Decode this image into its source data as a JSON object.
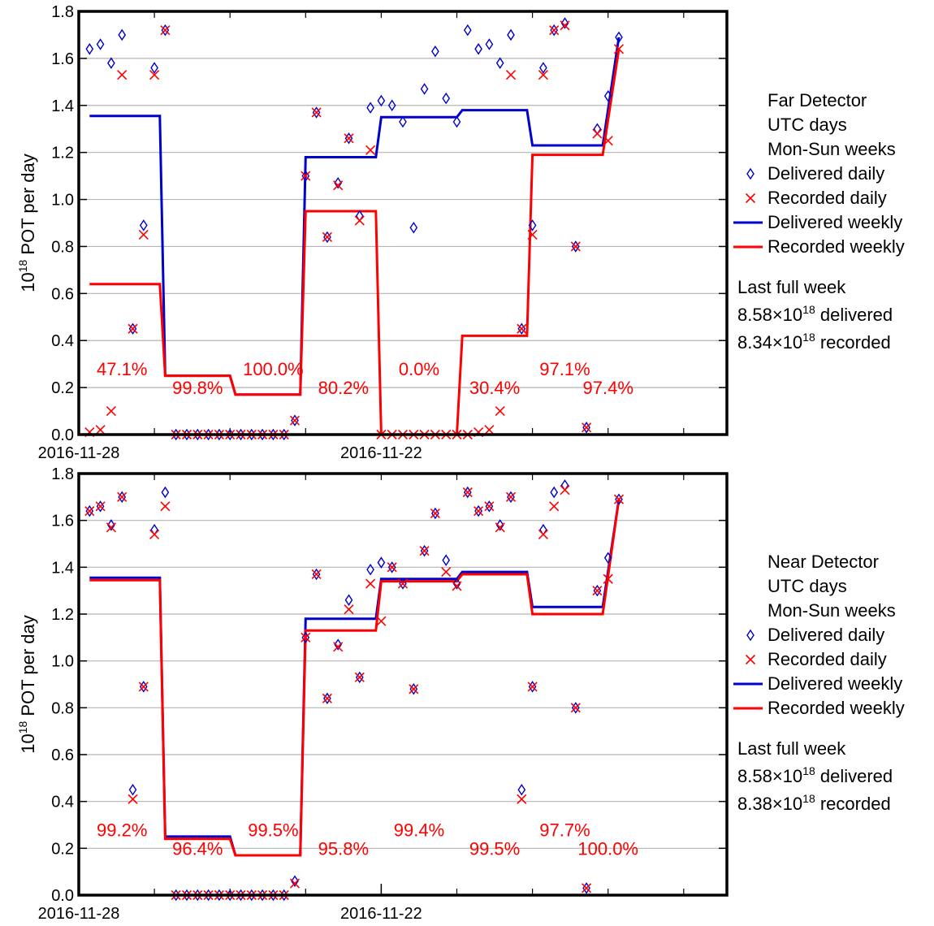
{
  "colors": {
    "delivered": "#0000cc",
    "recorded": "#ff0000",
    "grid": "#b4b4b4",
    "axis": "#000000"
  },
  "chart_data": [
    {
      "type": "scatter",
      "ylabel": "10",
      "ylabel_sup": "18",
      "ylabel_rest": " POT per day",
      "ylim": [
        0,
        1.8
      ],
      "xlim": [
        0,
        60
      ],
      "yticks": [
        "0.0",
        "0.2",
        "0.4",
        "0.6",
        "0.8",
        "1.0",
        "1.2",
        "1.4",
        "1.6",
        "1.8"
      ],
      "xtick_labels": [
        {
          "x": 0,
          "label": "2016-11-28"
        },
        {
          "x": 28,
          "label": "2016-11-22"
        }
      ],
      "legend": {
        "lines": [
          "Far Detector",
          "UTC days",
          "Mon-Sun weeks"
        ],
        "delivered_daily": "Delivered daily",
        "recorded_daily": "Recorded daily",
        "delivered_weekly": "Delivered weekly",
        "recorded_weekly": "Recorded weekly",
        "summary_title": "Last full week",
        "delivered_value": "8.58",
        "recorded_value": "8.34",
        "times": "×10",
        "exp": "18",
        "delivered_suffix": " delivered",
        "recorded_suffix": " recorded"
      },
      "delivered_daily": [
        [
          1,
          1.64
        ],
        [
          2,
          1.66
        ],
        [
          3,
          1.58
        ],
        [
          4,
          1.7
        ],
        [
          5,
          0.45
        ],
        [
          6,
          0.89
        ],
        [
          7,
          1.56
        ],
        [
          8,
          1.72
        ],
        [
          9,
          0
        ],
        [
          10,
          0
        ],
        [
          11,
          0
        ],
        [
          12,
          0
        ],
        [
          13,
          0
        ],
        [
          14,
          0
        ],
        [
          15,
          0
        ],
        [
          16,
          0
        ],
        [
          17,
          0
        ],
        [
          18,
          0
        ],
        [
          19,
          0
        ],
        [
          20,
          0.06
        ],
        [
          21,
          1.1
        ],
        [
          22,
          1.37
        ],
        [
          23,
          0.84
        ],
        [
          24,
          1.07
        ],
        [
          25,
          1.26
        ],
        [
          26,
          0.93
        ],
        [
          27,
          1.39
        ],
        [
          28,
          1.42
        ],
        [
          29,
          1.4
        ],
        [
          30,
          1.33
        ],
        [
          31,
          0.88
        ],
        [
          32,
          1.47
        ],
        [
          33,
          1.63
        ],
        [
          34,
          1.43
        ],
        [
          35,
          1.33
        ],
        [
          36,
          1.72
        ],
        [
          37,
          1.64
        ],
        [
          38,
          1.66
        ],
        [
          39,
          1.58
        ],
        [
          40,
          1.7
        ],
        [
          41,
          0.45
        ],
        [
          42,
          0.89
        ],
        [
          43,
          1.56
        ],
        [
          44,
          1.72
        ],
        [
          45,
          1.75
        ],
        [
          46,
          0.8
        ],
        [
          47,
          0.03
        ],
        [
          48,
          1.3
        ],
        [
          49,
          1.44
        ],
        [
          50,
          1.69
        ]
      ],
      "recorded_daily": [
        [
          1,
          0.01
        ],
        [
          2,
          0.02
        ],
        [
          3,
          0.1
        ],
        [
          4,
          1.53
        ],
        [
          5,
          0.45
        ],
        [
          6,
          0.85
        ],
        [
          7,
          1.53
        ],
        [
          8,
          1.72
        ],
        [
          9,
          0
        ],
        [
          10,
          0
        ],
        [
          11,
          0
        ],
        [
          12,
          0
        ],
        [
          13,
          0
        ],
        [
          14,
          0
        ],
        [
          15,
          0
        ],
        [
          16,
          0
        ],
        [
          17,
          0
        ],
        [
          18,
          0
        ],
        [
          19,
          0
        ],
        [
          20,
          0.06
        ],
        [
          21,
          1.1
        ],
        [
          22,
          1.37
        ],
        [
          23,
          0.84
        ],
        [
          24,
          1.06
        ],
        [
          25,
          1.26
        ],
        [
          26,
          0.91
        ],
        [
          27,
          1.21
        ],
        [
          28,
          0
        ],
        [
          29,
          0
        ],
        [
          30,
          0
        ],
        [
          31,
          0
        ],
        [
          32,
          0
        ],
        [
          33,
          0
        ],
        [
          34,
          0
        ],
        [
          35,
          0
        ],
        [
          36,
          0
        ],
        [
          37,
          0.01
        ],
        [
          38,
          0.02
        ],
        [
          39,
          0.1
        ],
        [
          40,
          1.53
        ],
        [
          41,
          0.45
        ],
        [
          42,
          0.85
        ],
        [
          43,
          1.53
        ],
        [
          44,
          1.72
        ],
        [
          45,
          1.74
        ],
        [
          46,
          0.8
        ],
        [
          47,
          0.03
        ],
        [
          48,
          1.28
        ],
        [
          49,
          1.25
        ],
        [
          50,
          1.64
        ]
      ],
      "delivered_weekly": [
        [
          1,
          1.355
        ],
        [
          7.5,
          1.355
        ],
        [
          8,
          0.25
        ],
        [
          14,
          0.25
        ],
        [
          14.5,
          0.17
        ],
        [
          20.5,
          0.17
        ],
        [
          21,
          1.18
        ],
        [
          27.5,
          1.18
        ],
        [
          28,
          1.35
        ],
        [
          35,
          1.35
        ],
        [
          35.5,
          1.38
        ],
        [
          41.5,
          1.38
        ],
        [
          42,
          1.23
        ],
        [
          48,
          1.23
        ],
        [
          48.5,
          1.23
        ],
        [
          50,
          1.69
        ]
      ],
      "recorded_weekly": [
        [
          1,
          0.64
        ],
        [
          7.5,
          0.64
        ],
        [
          8,
          0.25
        ],
        [
          14,
          0.25
        ],
        [
          14.5,
          0.17
        ],
        [
          20.5,
          0.17
        ],
        [
          21,
          0.95
        ],
        [
          27.5,
          0.95
        ],
        [
          28,
          0
        ],
        [
          35,
          0
        ],
        [
          35.5,
          0.42
        ],
        [
          41.5,
          0.42
        ],
        [
          42,
          1.19
        ],
        [
          48,
          1.19
        ],
        [
          48.5,
          1.19
        ],
        [
          50,
          1.64
        ]
      ],
      "percent_labels": [
        {
          "text": "47.1%",
          "x": 4,
          "y": 0.28
        },
        {
          "text": "99.8%",
          "x": 11,
          "y": 0.2
        },
        {
          "text": "100.0%",
          "x": 18,
          "y": 0.28
        },
        {
          "text": "80.2%",
          "x": 24.5,
          "y": 0.2
        },
        {
          "text": "0.0%",
          "x": 31.5,
          "y": 0.28
        },
        {
          "text": "30.4%",
          "x": 38.5,
          "y": 0.2
        },
        {
          "text": "97.1%",
          "x": 45,
          "y": 0.28
        },
        {
          "text": "97.4%",
          "x": 49,
          "y": 0.2
        }
      ]
    },
    {
      "type": "scatter",
      "ylabel": "10",
      "ylabel_sup": "18",
      "ylabel_rest": " POT per day",
      "ylim": [
        0,
        1.8
      ],
      "xlim": [
        0,
        60
      ],
      "yticks": [
        "0.0",
        "0.2",
        "0.4",
        "0.6",
        "0.8",
        "1.0",
        "1.2",
        "1.4",
        "1.6",
        "1.8"
      ],
      "xtick_labels": [
        {
          "x": 0,
          "label": "2016-11-28"
        },
        {
          "x": 28,
          "label": "2016-11-22"
        }
      ],
      "legend": {
        "lines": [
          "Near Detector",
          "UTC days",
          "Mon-Sun weeks"
        ],
        "delivered_daily": "Delivered daily",
        "recorded_daily": "Recorded daily",
        "delivered_weekly": "Delivered weekly",
        "recorded_weekly": "Recorded weekly",
        "summary_title": "Last full week",
        "delivered_value": "8.58",
        "recorded_value": "8.38",
        "times": "×10",
        "exp": "18",
        "delivered_suffix": " delivered",
        "recorded_suffix": " recorded"
      },
      "delivered_daily": [
        [
          1,
          1.64
        ],
        [
          2,
          1.66
        ],
        [
          3,
          1.58
        ],
        [
          4,
          1.7
        ],
        [
          5,
          0.45
        ],
        [
          6,
          0.89
        ],
        [
          7,
          1.56
        ],
        [
          8,
          1.72
        ],
        [
          9,
          0
        ],
        [
          10,
          0
        ],
        [
          11,
          0
        ],
        [
          12,
          0
        ],
        [
          13,
          0
        ],
        [
          14,
          0
        ],
        [
          15,
          0
        ],
        [
          16,
          0
        ],
        [
          17,
          0
        ],
        [
          18,
          0
        ],
        [
          19,
          0
        ],
        [
          20,
          0.06
        ],
        [
          21,
          1.1
        ],
        [
          22,
          1.37
        ],
        [
          23,
          0.84
        ],
        [
          24,
          1.07
        ],
        [
          25,
          1.26
        ],
        [
          26,
          0.93
        ],
        [
          27,
          1.39
        ],
        [
          28,
          1.42
        ],
        [
          29,
          1.4
        ],
        [
          30,
          1.33
        ],
        [
          31,
          0.88
        ],
        [
          32,
          1.47
        ],
        [
          33,
          1.63
        ],
        [
          34,
          1.43
        ],
        [
          35,
          1.33
        ],
        [
          36,
          1.72
        ],
        [
          37,
          1.64
        ],
        [
          38,
          1.66
        ],
        [
          39,
          1.58
        ],
        [
          40,
          1.7
        ],
        [
          41,
          0.45
        ],
        [
          42,
          0.89
        ],
        [
          43,
          1.56
        ],
        [
          44,
          1.72
        ],
        [
          45,
          1.75
        ],
        [
          46,
          0.8
        ],
        [
          47,
          0.03
        ],
        [
          48,
          1.3
        ],
        [
          49,
          1.44
        ],
        [
          50,
          1.69
        ]
      ],
      "recorded_daily": [
        [
          1,
          1.64
        ],
        [
          2,
          1.66
        ],
        [
          3,
          1.57
        ],
        [
          4,
          1.7
        ],
        [
          5,
          0.41
        ],
        [
          6,
          0.89
        ],
        [
          7,
          1.54
        ],
        [
          8,
          1.66
        ],
        [
          9,
          0
        ],
        [
          10,
          0
        ],
        [
          11,
          0
        ],
        [
          12,
          0
        ],
        [
          13,
          0
        ],
        [
          14,
          0
        ],
        [
          15,
          0
        ],
        [
          16,
          0
        ],
        [
          17,
          0
        ],
        [
          18,
          0
        ],
        [
          19,
          0
        ],
        [
          20,
          0.05
        ],
        [
          21,
          1.1
        ],
        [
          22,
          1.37
        ],
        [
          23,
          0.84
        ],
        [
          24,
          1.06
        ],
        [
          25,
          1.22
        ],
        [
          26,
          0.93
        ],
        [
          27,
          1.33
        ],
        [
          28,
          1.17
        ],
        [
          29,
          1.4
        ],
        [
          30,
          1.33
        ],
        [
          31,
          0.88
        ],
        [
          32,
          1.47
        ],
        [
          33,
          1.63
        ],
        [
          34,
          1.38
        ],
        [
          35,
          1.32
        ],
        [
          36,
          1.72
        ],
        [
          37,
          1.64
        ],
        [
          38,
          1.66
        ],
        [
          39,
          1.57
        ],
        [
          40,
          1.7
        ],
        [
          41,
          0.41
        ],
        [
          42,
          0.89
        ],
        [
          43,
          1.54
        ],
        [
          44,
          1.66
        ],
        [
          45,
          1.73
        ],
        [
          46,
          0.8
        ],
        [
          47,
          0.03
        ],
        [
          48,
          1.3
        ],
        [
          49,
          1.35
        ],
        [
          50,
          1.69
        ]
      ],
      "delivered_weekly": [
        [
          1,
          1.355
        ],
        [
          7.5,
          1.355
        ],
        [
          8,
          0.25
        ],
        [
          14,
          0.25
        ],
        [
          14.5,
          0.17
        ],
        [
          20.5,
          0.17
        ],
        [
          21,
          1.18
        ],
        [
          27.5,
          1.18
        ],
        [
          28,
          1.35
        ],
        [
          35,
          1.35
        ],
        [
          35.5,
          1.38
        ],
        [
          41.5,
          1.38
        ],
        [
          42,
          1.23
        ],
        [
          48,
          1.23
        ],
        [
          48.5,
          1.23
        ],
        [
          50,
          1.69
        ]
      ],
      "recorded_weekly": [
        [
          1,
          1.345
        ],
        [
          7.5,
          1.345
        ],
        [
          8,
          0.24
        ],
        [
          14,
          0.24
        ],
        [
          14.5,
          0.17
        ],
        [
          20.5,
          0.17
        ],
        [
          21,
          1.13
        ],
        [
          27.5,
          1.13
        ],
        [
          28,
          1.34
        ],
        [
          35,
          1.34
        ],
        [
          35.5,
          1.37
        ],
        [
          41.5,
          1.37
        ],
        [
          42,
          1.2
        ],
        [
          48,
          1.2
        ],
        [
          48.5,
          1.2
        ],
        [
          50,
          1.69
        ]
      ],
      "percent_labels": [
        {
          "text": "99.2%",
          "x": 4,
          "y": 0.28
        },
        {
          "text": "96.4%",
          "x": 11,
          "y": 0.2
        },
        {
          "text": "99.5%",
          "x": 18,
          "y": 0.28
        },
        {
          "text": "95.8%",
          "x": 24.5,
          "y": 0.2
        },
        {
          "text": "99.4%",
          "x": 31.5,
          "y": 0.28
        },
        {
          "text": "99.5%",
          "x": 38.5,
          "y": 0.2
        },
        {
          "text": "97.7%",
          "x": 45,
          "y": 0.28
        },
        {
          "text": "100.0%",
          "x": 49,
          "y": 0.2
        }
      ]
    }
  ]
}
